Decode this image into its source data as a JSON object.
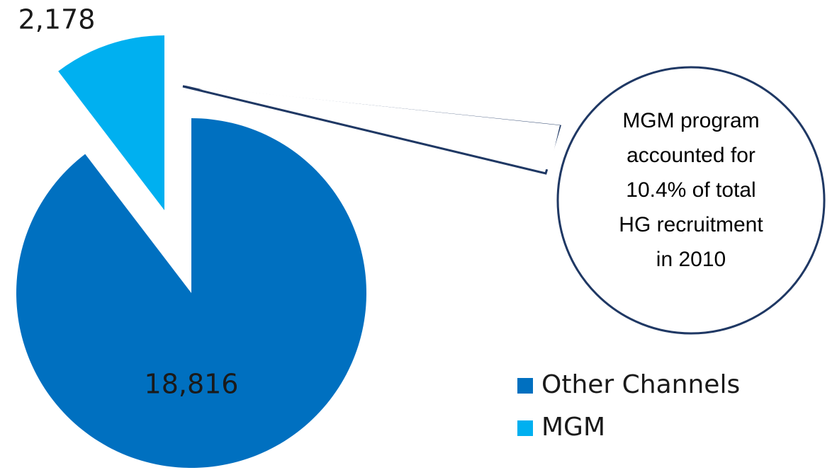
{
  "chart_data": {
    "type": "pie",
    "categories": [
      "Other Channels",
      "MGM"
    ],
    "values": [
      18816,
      2178
    ],
    "value_labels": [
      "18,816",
      "2,178"
    ],
    "colors": [
      "#0070c0",
      "#00b0f0"
    ],
    "annotation": [
      "MGM program",
      "accounted for",
      "10.4% of total",
      "HG recruitment",
      "in 2010"
    ],
    "legend": "right"
  }
}
